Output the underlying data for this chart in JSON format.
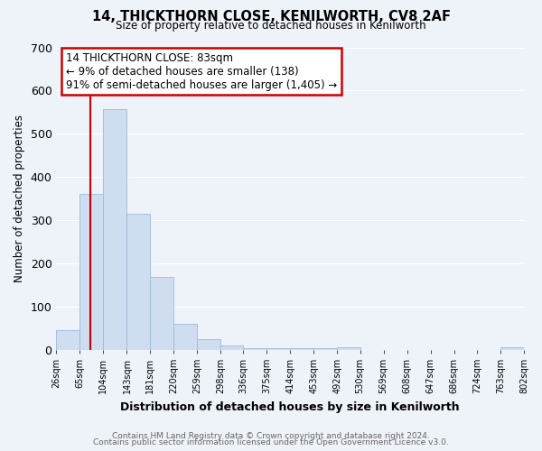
{
  "title": "14, THICKTHORN CLOSE, KENILWORTH, CV8 2AF",
  "subtitle": "Size of property relative to detached houses in Kenilworth",
  "xlabel": "Distribution of detached houses by size in Kenilworth",
  "ylabel": "Number of detached properties",
  "bar_edges": [
    26,
    65,
    104,
    143,
    181,
    220,
    259,
    298,
    336,
    375,
    414,
    453,
    492,
    530,
    569,
    608,
    647,
    686,
    724,
    763,
    802
  ],
  "bar_heights": [
    45,
    360,
    558,
    315,
    168,
    60,
    25,
    10,
    3,
    3,
    3,
    3,
    5,
    0,
    0,
    0,
    0,
    0,
    0,
    5
  ],
  "bar_color": "#cfddf0",
  "bar_edge_color": "#9abbd8",
  "property_line_x": 83,
  "property_line_color": "#cc0000",
  "ylim": [
    0,
    700
  ],
  "yticks": [
    0,
    100,
    200,
    300,
    400,
    500,
    600,
    700
  ],
  "annotation_line1": "14 THICKTHORN CLOSE: 83sqm",
  "annotation_line2": "← 9% of detached houses are smaller (138)",
  "annotation_line3": "91% of semi-detached houses are larger (1,405) →",
  "annotation_box_color": "#ffffff",
  "annotation_box_edge_color": "#cc0000",
  "footer_line1": "Contains HM Land Registry data © Crown copyright and database right 2024.",
  "footer_line2": "Contains public sector information licensed under the Open Government Licence v3.0.",
  "tick_labels": [
    "26sqm",
    "65sqm",
    "104sqm",
    "143sqm",
    "181sqm",
    "220sqm",
    "259sqm",
    "298sqm",
    "336sqm",
    "375sqm",
    "414sqm",
    "453sqm",
    "492sqm",
    "530sqm",
    "569sqm",
    "608sqm",
    "647sqm",
    "686sqm",
    "724sqm",
    "763sqm",
    "802sqm"
  ],
  "background_color": "#eef2f9",
  "grid_color": "#ffffff"
}
